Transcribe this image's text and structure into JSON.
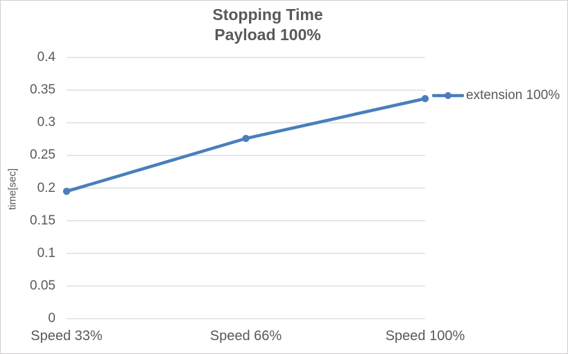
{
  "chart_data": {
    "type": "line",
    "title": "Stopping Time",
    "subtitle": "Payload 100%",
    "categories": [
      "Speed 33%",
      "Speed 66%",
      "Speed 100%"
    ],
    "series": [
      {
        "name": "extension 100%",
        "values": [
          0.195,
          0.276,
          0.337
        ],
        "color": "#4A7EBB",
        "marker": "circle"
      }
    ],
    "xlabel": "",
    "ylabel": "time[sec]",
    "ylim": [
      0,
      0.4
    ],
    "y_ticks": [
      "0",
      "0.05",
      "0.1",
      "0.15",
      "0.2",
      "0.25",
      "0.3",
      "0.35",
      "0.4"
    ],
    "grid": true,
    "legend_position": "right",
    "colors": {
      "text": "#595959",
      "gridline": "#D9D9D9",
      "series": "#4A7EBB",
      "border": "#D0CECE",
      "background": "#FFFFFF"
    }
  }
}
